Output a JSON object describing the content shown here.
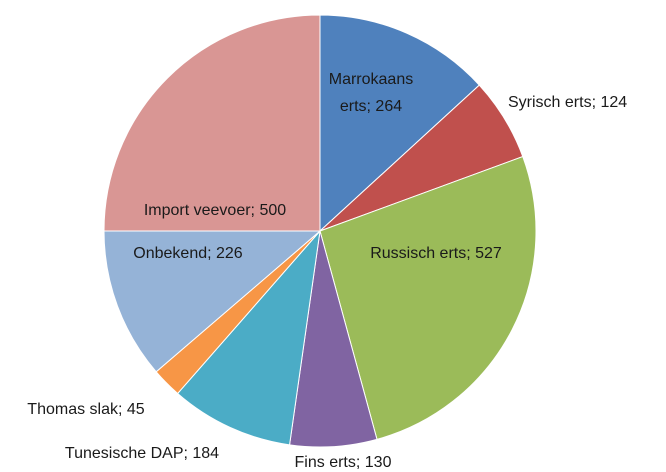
{
  "chart_data": {
    "type": "pie",
    "values": [
      264,
      124,
      527,
      130,
      184,
      45,
      226,
      500
    ],
    "value_labels": [
      "Marrokaans erts; 264",
      "Syrisch erts; 124",
      "Russisch erts; 527",
      "Fins erts; 130",
      "Tunesische DAP; 184",
      "Thomas slak; 45",
      "Onbekend; 226",
      "Import veevoer; 500"
    ],
    "colors": [
      "#4f81bd",
      "#c0504d",
      "#9bbb59",
      "#8064a2",
      "#4bacc6",
      "#f79646",
      "#95b3d7",
      "#d99694"
    ],
    "start_angle": 0,
    "direction": "clockwise"
  }
}
